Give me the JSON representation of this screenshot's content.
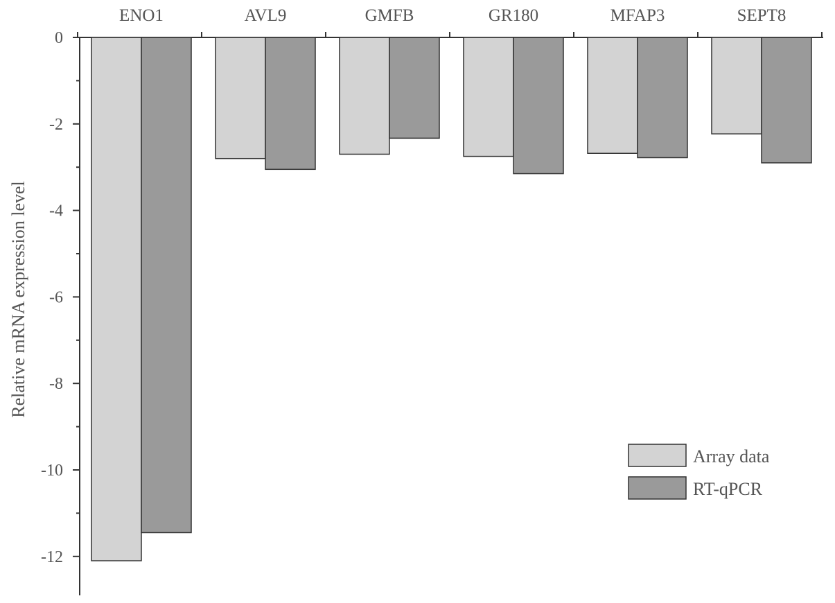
{
  "chart_data": {
    "type": "bar",
    "title": "",
    "xlabel": "",
    "ylabel": "Relative mRNA expression level",
    "categories": [
      "ENO1",
      "AVL9",
      "GMFB",
      "GR180",
      "MFAP3",
      "SEPT8"
    ],
    "series": [
      {
        "name": "Array data",
        "color": "#d3d3d3",
        "values": [
          -12.1,
          -2.8,
          -2.7,
          -2.75,
          -2.68,
          -2.23
        ]
      },
      {
        "name": "RT-qPCR",
        "color": "#9a9a9a",
        "values": [
          -11.45,
          -3.05,
          -2.33,
          -3.15,
          -2.78,
          -2.9
        ]
      }
    ],
    "ylim": [
      -12.9,
      0
    ],
    "yticks": [
      0,
      -2,
      -4,
      -6,
      -8,
      -10,
      -12
    ],
    "x_axis_position": "top",
    "grid": false,
    "legend_position": "bottom-right"
  }
}
